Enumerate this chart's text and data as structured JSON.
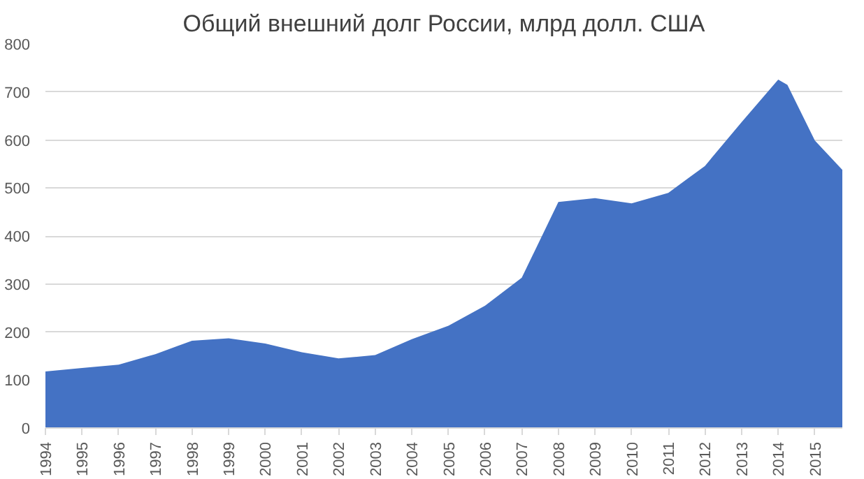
{
  "chart_data": {
    "type": "area",
    "title": "Общий внешний долг России, млрд долл. США",
    "x": [
      1994,
      1995,
      1996,
      1997,
      1998,
      1999,
      2000,
      2001,
      2002,
      2003,
      2004,
      2005,
      2006,
      2007,
      2008,
      2009,
      2010,
      2011,
      2012,
      2013,
      2014,
      2014.25,
      2015,
      2015.75
    ],
    "series": [
      {
        "color": "#4472c4",
        "values": [
          118,
          125,
          132,
          154,
          182,
          187,
          176,
          158,
          145,
          152,
          185,
          213,
          255,
          313,
          471,
          479,
          468,
          490,
          546,
          637,
          726,
          715,
          599,
          538
        ]
      }
    ],
    "xlim": [
      1994,
      2015.75
    ],
    "xticks": [
      1994,
      1995,
      1996,
      1997,
      1998,
      1999,
      2000,
      2001,
      2002,
      2003,
      2004,
      2005,
      2006,
      2007,
      2008,
      2009,
      2010,
      2011,
      2012,
      2013,
      2014,
      2015
    ],
    "ylim": [
      0,
      800
    ],
    "yticks": [
      0,
      100,
      200,
      300,
      400,
      500,
      600,
      700,
      800
    ],
    "grid": "y"
  }
}
